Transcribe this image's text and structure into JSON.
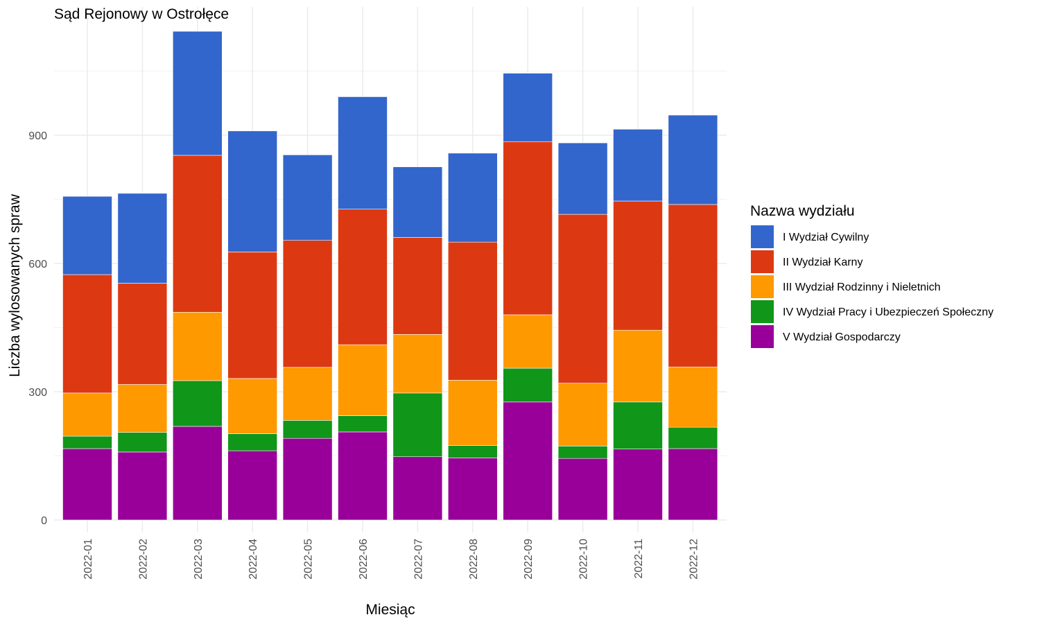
{
  "chart_data": {
    "type": "bar",
    "stacked": true,
    "title": "Sąd Rejonowy w Ostrołęce",
    "xlabel": "Miesiąc",
    "ylabel": "Liczba wylosowanych spraw",
    "ylim": [
      0,
      1200
    ],
    "yticks": [
      0,
      300,
      600,
      900
    ],
    "grid": true,
    "legend_title": "Nazwa wydziału",
    "legend_position": "right",
    "categories": [
      "2022-01",
      "2022-02",
      "2022-03",
      "2022-04",
      "2022-05",
      "2022-06",
      "2022-07",
      "2022-08",
      "2022-09",
      "2022-10",
      "2022-11",
      "2022-12"
    ],
    "series": [
      {
        "name": "V Wydział Gospodarczy",
        "color": "#990099",
        "values": [
          167,
          159,
          219,
          162,
          191,
          206,
          148,
          145,
          276,
          144,
          166,
          167
        ]
      },
      {
        "name": "IV Wydział Pracy i Ubezpieczeń Społeczny",
        "color": "#109618",
        "values": [
          29,
          46,
          107,
          40,
          42,
          38,
          149,
          29,
          79,
          29,
          110,
          50
        ]
      },
      {
        "name": "III Wydział Rodzinny i Nieletnich",
        "color": "#ff9900",
        "values": [
          101,
          112,
          160,
          129,
          124,
          166,
          137,
          153,
          125,
          147,
          168,
          141
        ]
      },
      {
        "name": "II Wydział Karny",
        "color": "#dc3912",
        "values": [
          277,
          237,
          367,
          296,
          297,
          317,
          227,
          323,
          405,
          395,
          302,
          380
        ]
      },
      {
        "name": "I Wydział Cywilny",
        "color": "#3366cc",
        "values": [
          183,
          210,
          290,
          283,
          200,
          263,
          165,
          208,
          160,
          167,
          168,
          209
        ]
      }
    ]
  }
}
